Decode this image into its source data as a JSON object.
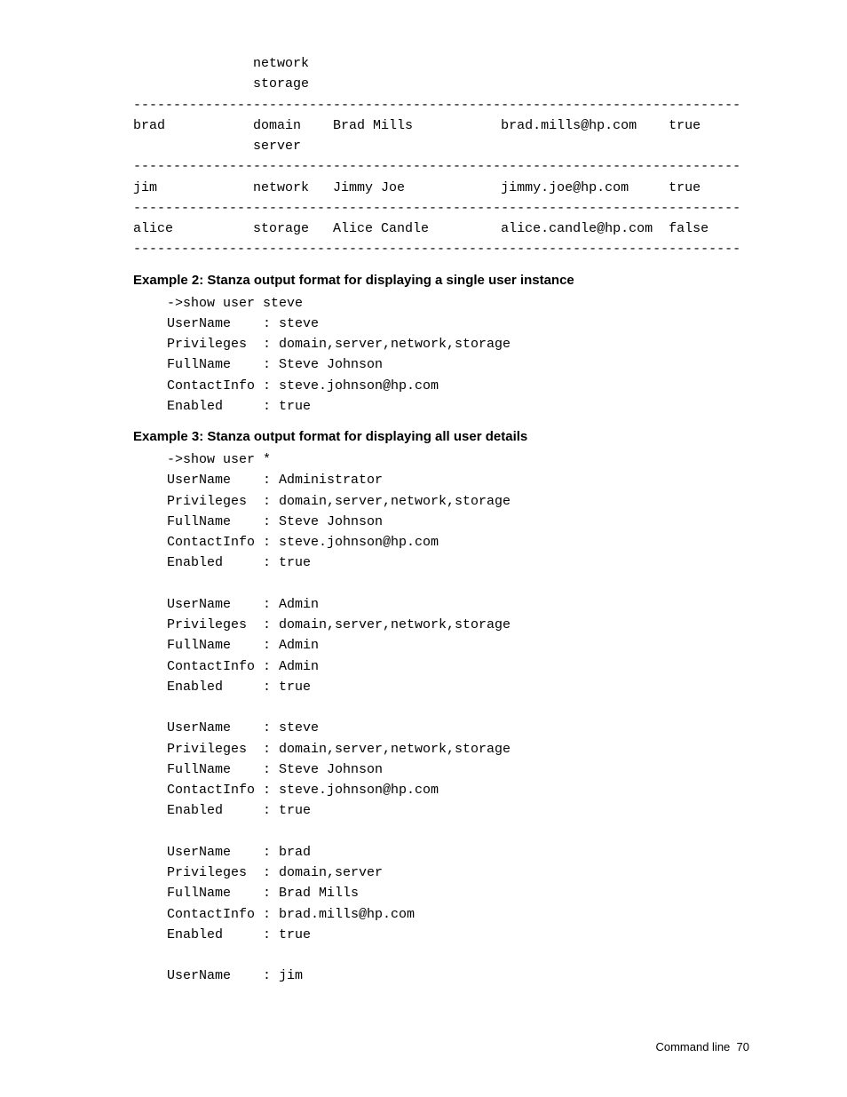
{
  "text_color": "#000000",
  "background_color": "#ffffff",
  "mono_font": "Courier New",
  "heading_font": "Arial",
  "table_block": {
    "lines": [
      "               network",
      "               storage",
      "----------------------------------------------------------------------------",
      "brad           domain    Brad Mills           brad.mills@hp.com    true",
      "               server",
      "----------------------------------------------------------------------------",
      "jim            network   Jimmy Joe            jimmy.joe@hp.com     true",
      "----------------------------------------------------------------------------",
      "alice          storage   Alice Candle         alice.candle@hp.com  false",
      "----------------------------------------------------------------------------"
    ],
    "users": [
      {
        "user": "brad",
        "privileges": [
          "domain",
          "server"
        ],
        "fullname": "Brad Mills",
        "contact": "brad.mills@hp.com",
        "enabled": "true"
      },
      {
        "user": "jim",
        "privileges": [
          "network"
        ],
        "fullname": "Jimmy Joe",
        "contact": "jimmy.joe@hp.com",
        "enabled": "true"
      },
      {
        "user": "alice",
        "privileges": [
          "storage"
        ],
        "fullname": "Alice Candle",
        "contact": "alice.candle@hp.com",
        "enabled": "false"
      }
    ]
  },
  "example2": {
    "heading": "Example 2: Stanza output format for displaying a single user instance",
    "lines": [
      "->show user steve",
      "UserName    : steve",
      "Privileges  : domain,server,network,storage",
      "FullName    : Steve Johnson",
      "ContactInfo : steve.johnson@hp.com",
      "Enabled     : true"
    ],
    "stanza": {
      "command": "->show user steve",
      "UserName": "steve",
      "Privileges": "domain,server,network,storage",
      "FullName": "Steve Johnson",
      "ContactInfo": "steve.johnson@hp.com",
      "Enabled": "true"
    }
  },
  "example3": {
    "heading": "Example 3: Stanza output format for displaying all user details",
    "command": "->show user *",
    "stanzas": [
      {
        "UserName": "Administrator",
        "Privileges": "domain,server,network,storage",
        "FullName": "Steve Johnson",
        "ContactInfo": "steve.johnson@hp.com",
        "Enabled": "true"
      },
      {
        "UserName": "Admin",
        "Privileges": "domain,server,network,storage",
        "FullName": "Admin",
        "ContactInfo": "Admin",
        "Enabled": "true"
      },
      {
        "UserName": "steve",
        "Privileges": "domain,server,network,storage",
        "FullName": "Steve Johnson",
        "ContactInfo": "steve.johnson@hp.com",
        "Enabled": "true"
      },
      {
        "UserName": "brad",
        "Privileges": "domain,server",
        "FullName": "Brad Mills",
        "ContactInfo": "brad.mills@hp.com",
        "Enabled": "true"
      }
    ],
    "trailing": {
      "UserName": "jim"
    },
    "lines": [
      "->show user *",
      "UserName    : Administrator",
      "Privileges  : domain,server,network,storage",
      "FullName    : Steve Johnson",
      "ContactInfo : steve.johnson@hp.com",
      "Enabled     : true",
      "",
      "UserName    : Admin",
      "Privileges  : domain,server,network,storage",
      "FullName    : Admin",
      "ContactInfo : Admin",
      "Enabled     : true",
      "",
      "UserName    : steve",
      "Privileges  : domain,server,network,storage",
      "FullName    : Steve Johnson",
      "ContactInfo : steve.johnson@hp.com",
      "Enabled     : true",
      "",
      "UserName    : brad",
      "Privileges  : domain,server",
      "FullName    : Brad Mills",
      "ContactInfo : brad.mills@hp.com",
      "Enabled     : true",
      "",
      "UserName    : jim"
    ]
  },
  "footer": {
    "label": "Command line",
    "page": "70"
  }
}
